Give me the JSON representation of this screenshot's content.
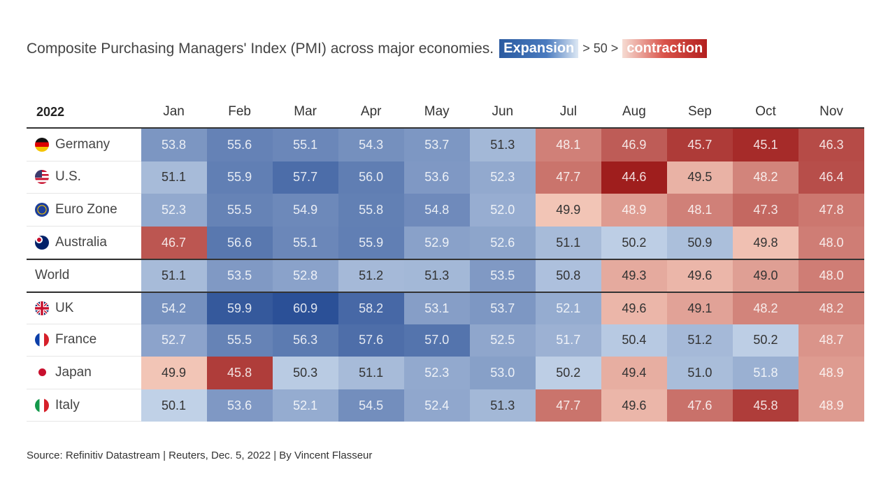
{
  "title": "Composite Purchasing Managers' Index (PMI) across major economies.",
  "legend": {
    "expansion": "Expansion",
    "middle": "> 50 >",
    "contraction": "contraction"
  },
  "source": "Source: Refinitiv Datastream | Reuters, Dec. 5, 2022 | By Vincent Flasseur",
  "colors": {
    "expansion_strong": "#2a4f96",
    "expansion_light": "#c6d6ea",
    "contraction_light": "#f6ccbd",
    "contraction_strong": "#9e1b1b",
    "threshold": 50
  },
  "chart_data": {
    "type": "heatmap",
    "title": "Composite Purchasing Managers' Index (PMI) across major economies.",
    "corner_label": "2022",
    "columns": [
      "Jan",
      "Feb",
      "Mar",
      "Apr",
      "May",
      "Jun",
      "Jul",
      "Aug",
      "Sep",
      "Oct",
      "Nov"
    ],
    "rows": [
      {
        "name": "Germany",
        "flag": "germany-flag-icon",
        "values": [
          53.8,
          55.6,
          55.1,
          54.3,
          53.7,
          51.3,
          48.1,
          46.9,
          45.7,
          45.1,
          46.3
        ]
      },
      {
        "name": "U.S.",
        "flag": "us-flag-icon",
        "values": [
          51.1,
          55.9,
          57.7,
          56.0,
          53.6,
          52.3,
          47.7,
          44.6,
          49.5,
          48.2,
          46.4
        ]
      },
      {
        "name": "Euro Zone",
        "flag": "eu-flag-icon",
        "values": [
          52.3,
          55.5,
          54.9,
          55.8,
          54.8,
          52.0,
          49.9,
          48.9,
          48.1,
          47.3,
          47.8
        ]
      },
      {
        "name": "Australia",
        "flag": "australia-flag-icon",
        "values": [
          46.7,
          56.6,
          55.1,
          55.9,
          52.9,
          52.6,
          51.1,
          50.2,
          50.9,
          49.8,
          48.0
        ]
      },
      {
        "name": "World",
        "flag": "",
        "values": [
          51.1,
          53.5,
          52.8,
          51.2,
          51.3,
          53.5,
          50.8,
          49.3,
          49.6,
          49.0,
          48.0
        ]
      },
      {
        "name": "UK",
        "flag": "uk-flag-icon",
        "values": [
          54.2,
          59.9,
          60.9,
          58.2,
          53.1,
          53.7,
          52.1,
          49.6,
          49.1,
          48.2,
          48.2
        ]
      },
      {
        "name": "France",
        "flag": "france-flag-icon",
        "values": [
          52.7,
          55.5,
          56.3,
          57.6,
          57.0,
          52.5,
          51.7,
          50.4,
          51.2,
          50.2,
          48.7
        ]
      },
      {
        "name": "Japan",
        "flag": "japan-flag-icon",
        "values": [
          49.9,
          45.8,
          50.3,
          51.1,
          52.3,
          53.0,
          50.2,
          49.4,
          51.0,
          51.8,
          48.9
        ]
      },
      {
        "name": "Italy",
        "flag": "italy-flag-icon",
        "values": [
          50.1,
          53.6,
          52.1,
          54.5,
          52.4,
          51.3,
          47.7,
          49.6,
          47.6,
          45.8,
          48.9
        ]
      }
    ]
  }
}
